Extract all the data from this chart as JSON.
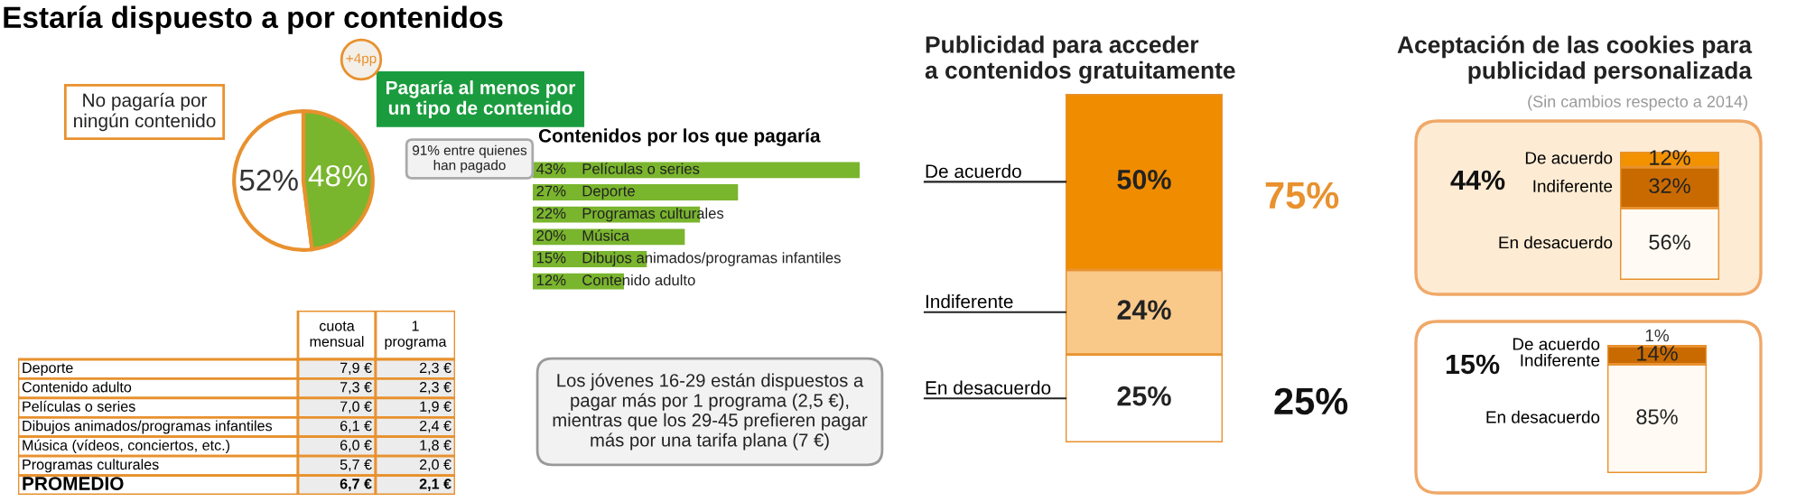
{
  "chart_data": [
    {
      "type": "pie",
      "title": "Estaría dispuesto a por contenidos",
      "categories": [
        "No pagaría por\nningún contenido",
        "Pagaría al menos por\nun tipo de contenido"
      ],
      "values": [
        52,
        48
      ],
      "value_labels": [
        "52%",
        "48%"
      ],
      "colors": [
        "#ffffff",
        "#7ab52e"
      ],
      "annotations": [
        "+4pp",
        "91% entre quienes\nhan pagado"
      ]
    },
    {
      "type": "bar",
      "orientation": "horizontal",
      "title": "Contenidos por los que pagaría",
      "categories": [
        "Películas o series",
        "Deporte",
        "Programas culturales",
        "Música",
        "Dibujos animados/programas infantiles",
        "Contenido adulto"
      ],
      "values": [
        43,
        27,
        22,
        20,
        15,
        12
      ],
      "value_labels": [
        "43%",
        "27%",
        "22%",
        "20%",
        "15%",
        "12%"
      ],
      "color": "#7ab52e"
    },
    {
      "type": "other",
      "categories": [
        "Deporte",
        "Contenido adulto",
        "Películas o series",
        "Dibujos animados/programas infantiles",
        "Música (vídeos, conciertos, etc.)",
        "Programas culturales",
        "PROMEDIO"
      ],
      "series": [
        {
          "name": "cuota\nmensual",
          "values": [
            7.9,
            7.3,
            7.0,
            6.1,
            6.0,
            5.7,
            6.7
          ],
          "value_labels": [
            "7,9 €",
            "7,3 €",
            "7,0 €",
            "6,1 €",
            "6,0 €",
            "5,7 €",
            "6,7 €"
          ]
        },
        {
          "name": "1\nprograma",
          "values": [
            2.3,
            2.3,
            1.9,
            2.4,
            1.8,
            2.0,
            2.1
          ],
          "value_labels": [
            "2,3 €",
            "2,3 €",
            "1,9 €",
            "2,4 €",
            "1,8 €",
            "2,0 €",
            "2,1 €"
          ]
        }
      ],
      "annotations": [
        "Los jóvenes 16-29 están dispuestos a\npagar más por 1 programa (2,5 €),\nmientras que los 29-45 prefieren pagar\nmás por una tarifa plana (7 €)"
      ]
    },
    {
      "type": "bar",
      "stacked": true,
      "title": "Publicidad para acceder\na contenidos gratuitamente",
      "categories": [
        null
      ],
      "series": [
        {
          "name": "En desacuerdo",
          "color": "#ffffff",
          "values": [
            25
          ],
          "value_labels": [
            "25%"
          ]
        },
        {
          "name": "Indiferente",
          "color": "#f9c98a",
          "values": [
            24
          ],
          "value_labels": [
            "24%"
          ]
        },
        {
          "name": "De acuerdo",
          "color": "#f08c00",
          "values": [
            50
          ],
          "value_labels": [
            "50%"
          ]
        }
      ],
      "annotations": [
        "75%",
        "25%"
      ]
    },
    {
      "type": "bar",
      "stacked": true,
      "title": "Aceptación de las cookies para\npublicidad personalizada",
      "subtitle": "(Sin cambios respecto a 2014)",
      "categories": [
        null
      ],
      "series": [
        {
          "name": "En desacuerdo",
          "color": "#fffaf3",
          "values": [
            56
          ],
          "value_labels": [
            "56%"
          ]
        },
        {
          "name": "Indiferente",
          "color": "#c96a00",
          "values": [
            32
          ],
          "value_labels": [
            "32%"
          ]
        },
        {
          "name": "De acuerdo",
          "color": "#f39200",
          "values": [
            12
          ],
          "value_labels": [
            "12%"
          ]
        }
      ],
      "annotations": [
        "44%"
      ]
    },
    {
      "type": "bar",
      "stacked": true,
      "categories": [
        null
      ],
      "series": [
        {
          "name": "En desacuerdo",
          "color": "#fffaf3",
          "values": [
            85
          ],
          "value_labels": [
            "85%"
          ]
        },
        {
          "name": "Indiferente",
          "color": "#c96a00",
          "values": [
            14
          ],
          "value_labels": [
            "14%"
          ]
        },
        {
          "name": "De acuerdo",
          "color": "#f39200",
          "values": [
            1
          ],
          "value_labels": [
            "1%"
          ]
        }
      ],
      "annotations": [
        "15%"
      ]
    }
  ]
}
